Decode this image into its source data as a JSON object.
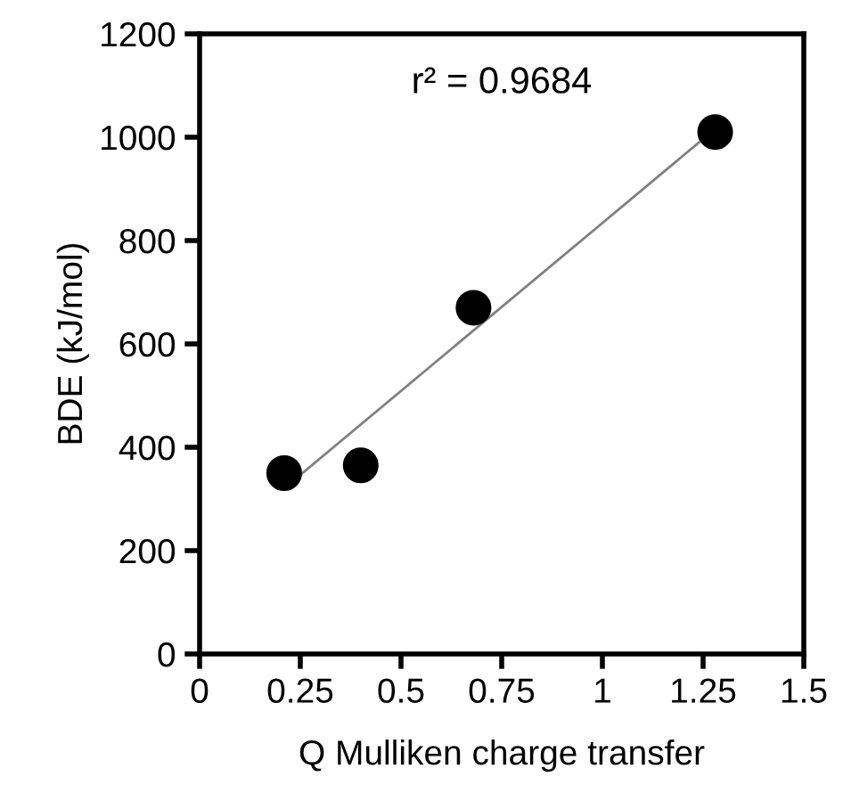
{
  "chart_data": {
    "type": "scatter",
    "xlabel": "Q Mulliken charge transfer",
    "ylabel": "BDE (kJ/mol)",
    "series": [
      {
        "color": "#000000",
        "marker": "circle",
        "x": [
          0.21,
          0.4,
          0.68,
          1.28
        ],
        "values": [
          350,
          365,
          670,
          1010
        ]
      },
      {
        "type": "line",
        "color": "#808080",
        "x": [
          0.24,
          1.24
        ],
        "values": [
          340,
          990
        ]
      }
    ],
    "annotations": [
      "r² = 0.9684"
    ],
    "xlim": [
      0,
      1.5
    ],
    "xticks": [
      0,
      0.25,
      0.5,
      0.75,
      1,
      1.25,
      1.5
    ],
    "ylim": [
      0,
      1200
    ],
    "yticks": [
      0,
      200,
      400,
      600,
      800,
      1000,
      1200
    ],
    "grid": false,
    "legend": false
  }
}
